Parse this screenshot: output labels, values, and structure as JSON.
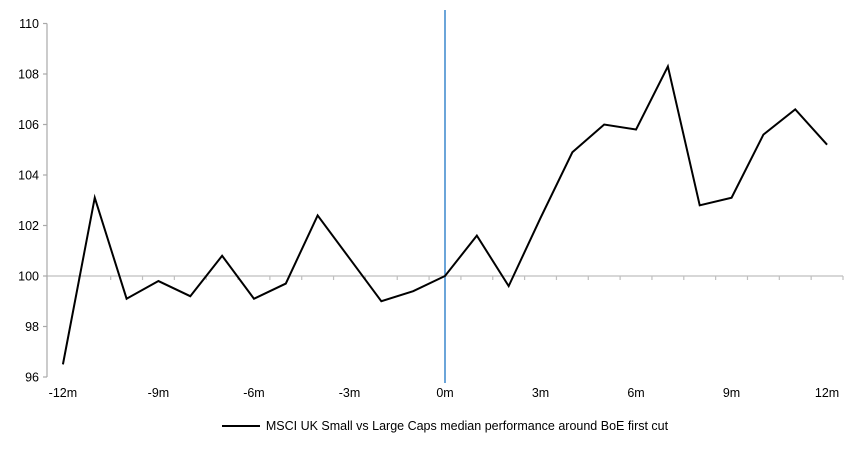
{
  "chart_data": {
    "type": "line",
    "title": "",
    "xlabel": "",
    "ylabel": "",
    "x": [
      -12,
      -11,
      -10,
      -9,
      -8,
      -7,
      -6,
      -5,
      -4,
      -3,
      -2,
      -1,
      0,
      1,
      2,
      3,
      4,
      5,
      6,
      7,
      8,
      9,
      10,
      11,
      12
    ],
    "series": [
      {
        "name": "MSCI UK Small vs Large Caps median performance around BoE first cut",
        "color": "#000000",
        "values": [
          96.5,
          103.1,
          99.1,
          99.8,
          99.2,
          100.8,
          99.1,
          99.7,
          102.4,
          100.7,
          99.0,
          99.4,
          100.0,
          101.6,
          99.6,
          102.3,
          104.9,
          106.0,
          105.8,
          108.3,
          102.8,
          103.1,
          105.6,
          106.6,
          105.2
        ]
      }
    ],
    "ylim": [
      96,
      110
    ],
    "yticks": [
      96,
      98,
      100,
      102,
      104,
      106,
      108,
      110
    ],
    "xticks": [
      -12,
      -9,
      -6,
      -3,
      0,
      3,
      6,
      9,
      12
    ],
    "xtick_labels": [
      "-12m",
      "-9m",
      "-6m",
      "-3m",
      "0m",
      "3m",
      "6m",
      "9m",
      "12m"
    ],
    "baseline": 100,
    "vline": {
      "x": 0,
      "color": "#5B9BD5"
    },
    "grid": "baseline-only",
    "legend_position": "bottom-center",
    "colors": {
      "axis": "#A9A9A9",
      "gridline": "#BFBFBF",
      "text": "#000000",
      "background": "#FFFFFF"
    }
  },
  "legend": {
    "label": "MSCI UK Small vs Large Caps median performance around BoE first cut"
  }
}
